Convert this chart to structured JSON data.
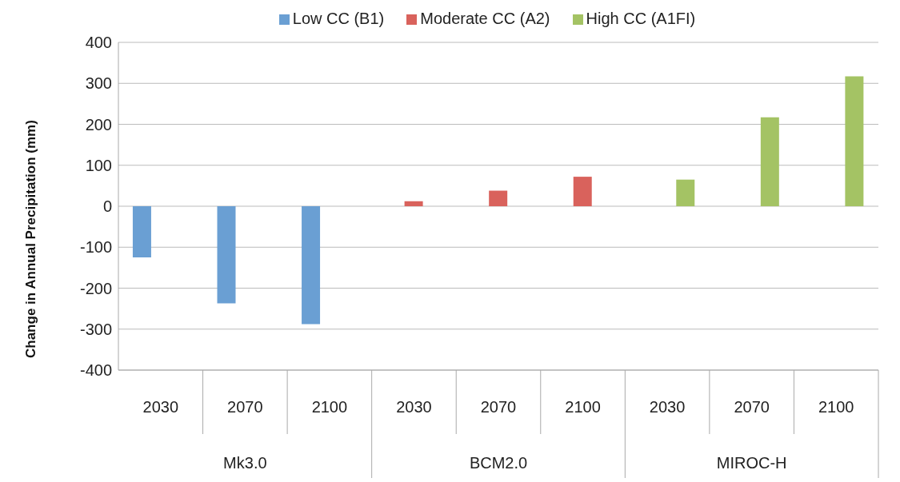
{
  "chart_data": {
    "type": "bar",
    "ylabel": "Change in Annual Precipitation (mm)",
    "categories": [
      "2030",
      "2070",
      "2100",
      "2030",
      "2070",
      "2100",
      "2030",
      "2070",
      "2100"
    ],
    "annotations": [
      "Mk3.0",
      "BCM2.0",
      "MIROC-H"
    ],
    "series": [
      {
        "name": "Low CC (B1)",
        "color": "#6a9fd3",
        "values": [
          -125,
          -237,
          -288,
          null,
          null,
          null,
          null,
          null,
          null
        ]
      },
      {
        "name": "Moderate CC (A2)",
        "color": "#d9625c",
        "values": [
          null,
          null,
          null,
          12,
          38,
          72,
          null,
          null,
          null
        ]
      },
      {
        "name": "High CC (A1FI)",
        "color": "#a4c364",
        "values": [
          null,
          null,
          null,
          null,
          null,
          null,
          65,
          217,
          317
        ]
      }
    ],
    "ylim": [
      -400,
      400
    ],
    "yticks": [
      -400,
      -300,
      -200,
      -100,
      0,
      100,
      200,
      300,
      400
    ],
    "grid": "y",
    "legend": "top"
  }
}
